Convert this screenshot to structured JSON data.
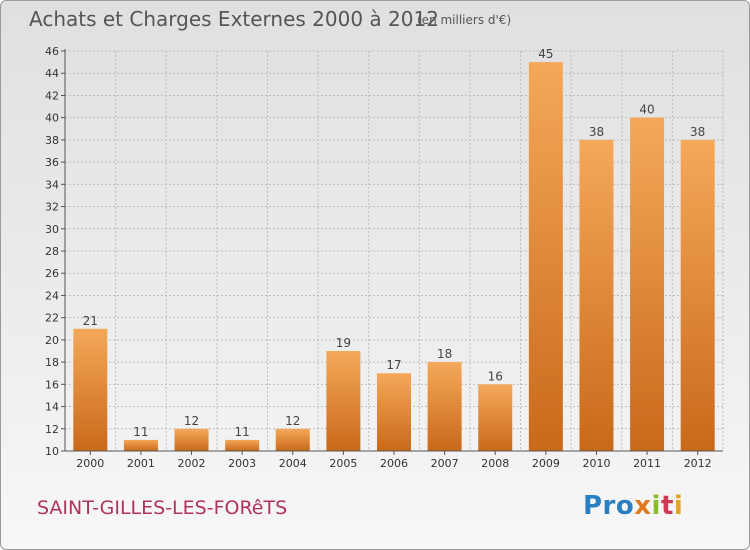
{
  "header": {
    "title": "Achats et Charges Externes 2000 à 2012",
    "unit": "(en milliers d'€)"
  },
  "footer": {
    "place": "SAINT-GILLES-LES-FORêTS",
    "logo": [
      "Pro",
      "x",
      "i",
      "t",
      "i"
    ],
    "logo_text": "Proxiti"
  },
  "colors": {
    "bar_top": "#f5a85a",
    "bar_bottom": "#c9691a",
    "grid": "#bdbdbd",
    "title": "#555555",
    "place": "#b0335a"
  },
  "chart_data": {
    "type": "bar",
    "title": "Achats et Charges Externes 2000 à 2012",
    "subtitle": "(en milliers d'€)",
    "xlabel": "",
    "ylabel": "",
    "categories": [
      "2000",
      "2001",
      "2002",
      "2003",
      "2004",
      "2005",
      "2006",
      "2007",
      "2008",
      "2009",
      "2010",
      "2011",
      "2012"
    ],
    "values": [
      21,
      11,
      12,
      11,
      12,
      19,
      17,
      18,
      16,
      45,
      38,
      40,
      38
    ],
    "ylim": [
      10,
      46
    ],
    "yticks": [
      10,
      12,
      14,
      16,
      18,
      20,
      22,
      24,
      26,
      28,
      30,
      32,
      34,
      36,
      38,
      40,
      42,
      44,
      46
    ],
    "grid": true,
    "data_labels": true
  }
}
